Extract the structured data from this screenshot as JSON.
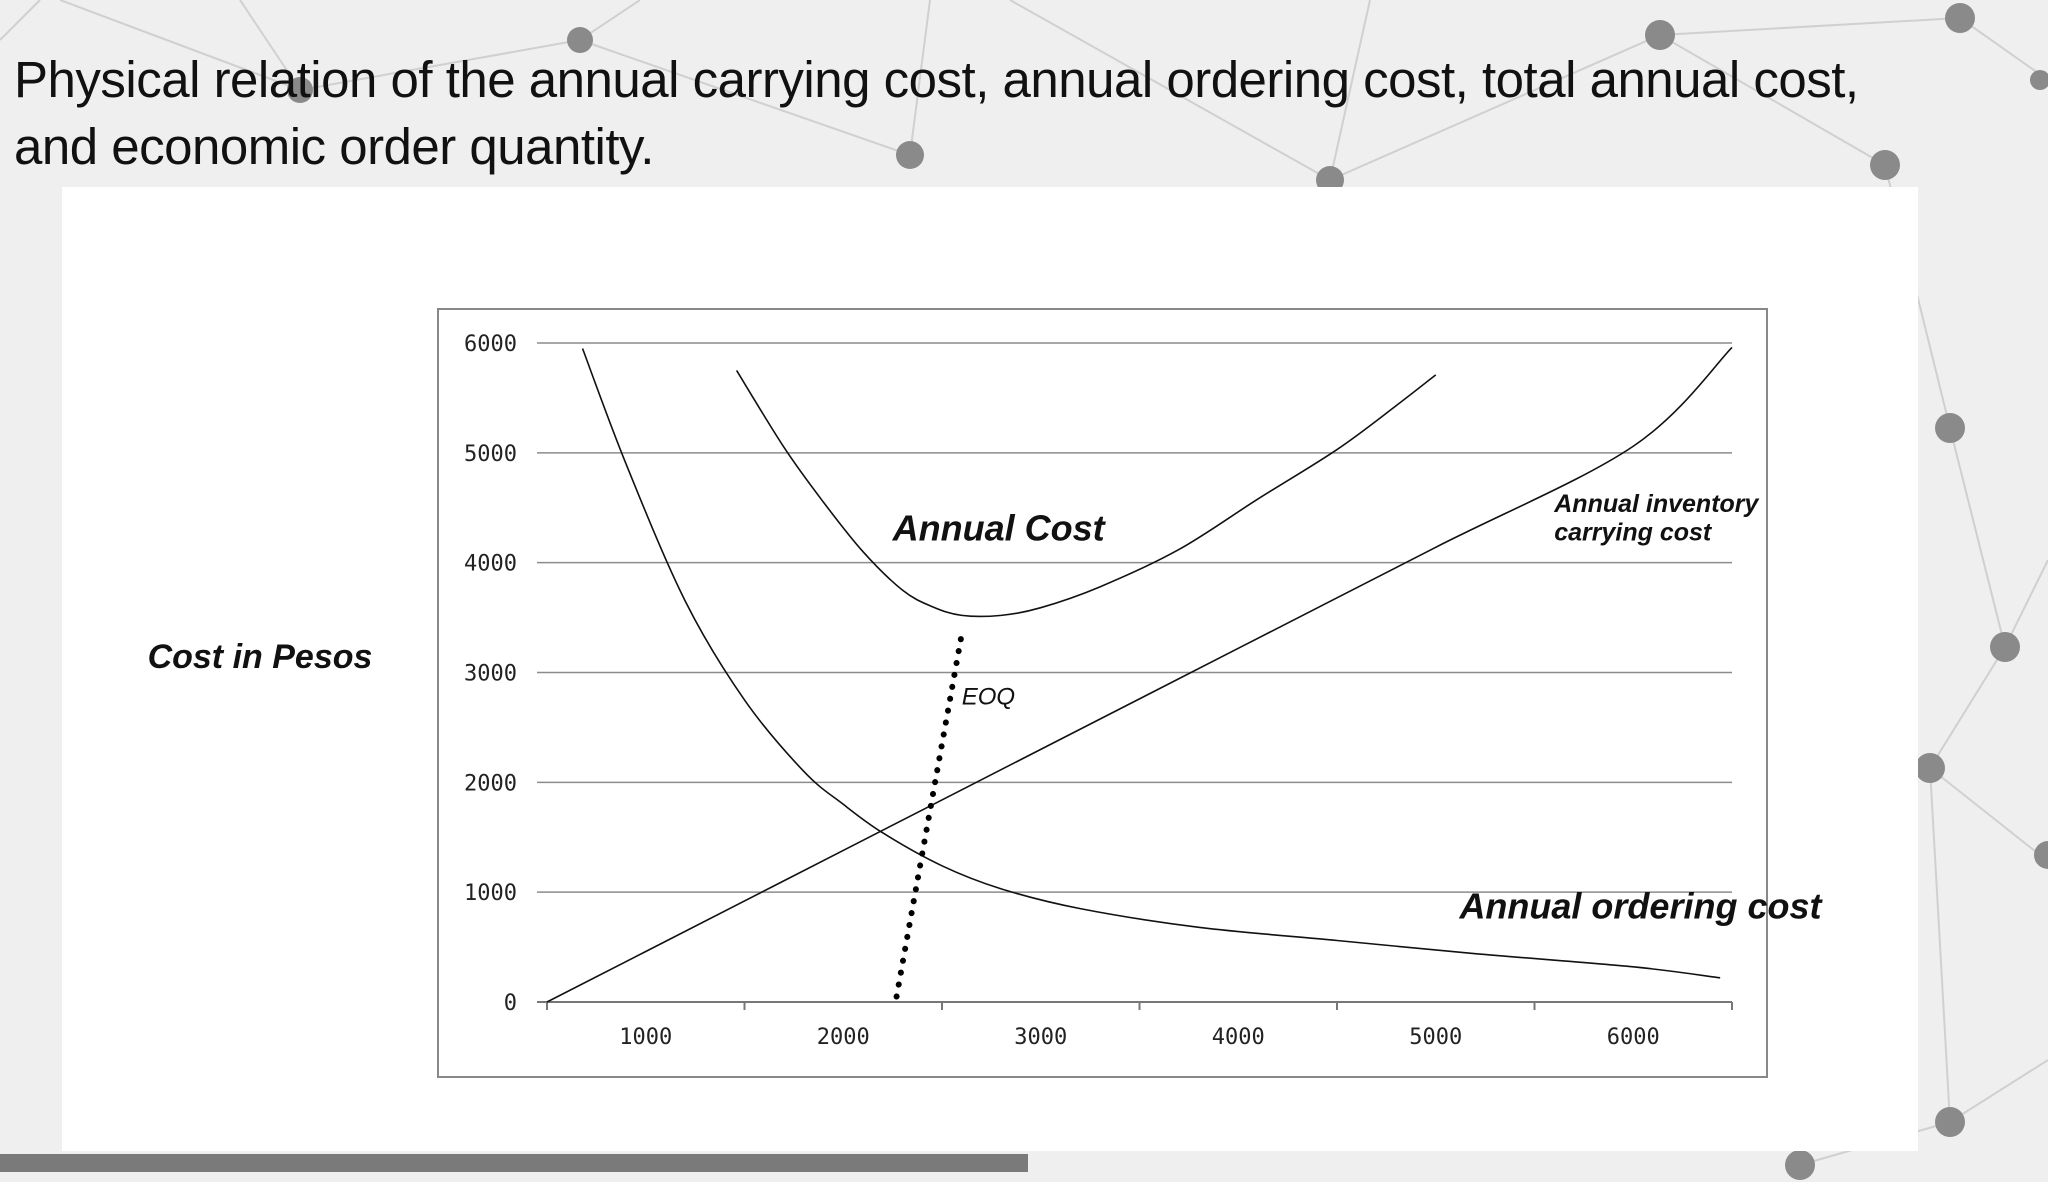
{
  "slide": {
    "title_line1": "Physical relation of the annual carrying cost, annual ordering cost, total annual cost,",
    "title_line2": "and economic order quantity."
  },
  "chart_data": {
    "type": "line",
    "title": "",
    "xlabel": "",
    "ylabel": "Cost in Pesos",
    "xlim": [
      500,
      6500
    ],
    "ylim": [
      0,
      6000
    ],
    "x_ticks": [
      1000,
      2000,
      3000,
      4000,
      5000,
      6000
    ],
    "y_ticks": [
      0,
      1000,
      2000,
      3000,
      4000,
      5000,
      6000
    ],
    "grid": "horizontal",
    "legend": "none",
    "series": [
      {
        "name": "Annual inventory carrying cost",
        "x": [
          500,
          1000,
          2000,
          3000,
          4000,
          5000,
          6000,
          6500
        ],
        "y": [
          0,
          460,
          1380,
          2300,
          3220,
          4140,
          5060,
          5960
        ]
      },
      {
        "name": "Annual ordering cost",
        "x": [
          680,
          900,
          1200,
          1500,
          1800,
          2000,
          2200,
          2500,
          2800,
          3200,
          3800,
          4500,
          5200,
          6000,
          6440
        ],
        "y": [
          5950,
          4900,
          3650,
          2750,
          2100,
          1800,
          1540,
          1240,
          1030,
          850,
          680,
          560,
          440,
          320,
          220
        ]
      },
      {
        "name": "Annual Cost",
        "x": [
          1460,
          1700,
          1900,
          2100,
          2300,
          2450,
          2600,
          2800,
          3000,
          3300,
          3700,
          4100,
          4500,
          4800,
          5000
        ],
        "y": [
          5750,
          5050,
          4550,
          4100,
          3750,
          3600,
          3520,
          3520,
          3590,
          3780,
          4120,
          4580,
          5030,
          5430,
          5710
        ]
      }
    ],
    "eoq_dotted_line": {
      "x": [
        2270,
        2600
      ],
      "y": [
        50,
        3350
      ]
    },
    "annotations": [
      {
        "text": "Annual Cost",
        "x": 2250,
        "y": 4200
      },
      {
        "text": "Annual inventory",
        "x": 5600,
        "y": 4460
      },
      {
        "text": "carrying cost",
        "x": 5600,
        "y": 4200
      },
      {
        "text": "EOQ",
        "x": 2600,
        "y": 2710
      },
      {
        "text": "Annual ordering cost",
        "x": 5120,
        "y": 760
      }
    ]
  }
}
